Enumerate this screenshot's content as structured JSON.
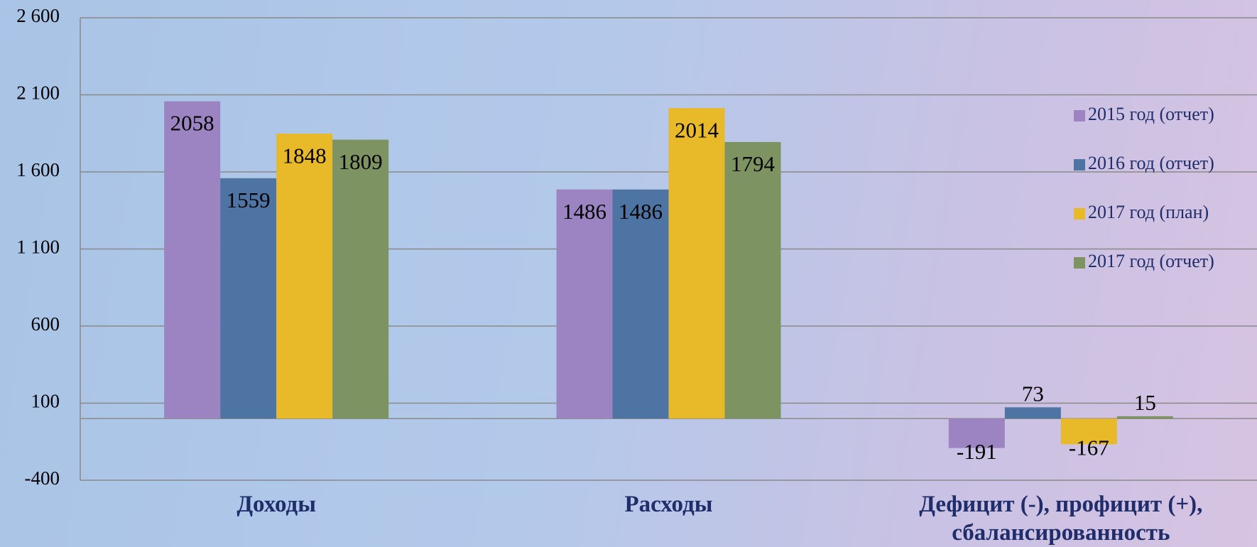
{
  "chart_data": {
    "type": "bar",
    "categories": [
      "Доходы",
      "Расходы",
      "Дефицит (-), профицит (+), сбалансированность"
    ],
    "series": [
      {
        "name": "2015 год (отчет)",
        "color": "#9b84c1",
        "values": [
          2058,
          1486,
          -191
        ]
      },
      {
        "name": "2016 год (отчет)",
        "color": "#4e74a4",
        "values": [
          1559,
          1486,
          73
        ]
      },
      {
        "name": "2017 год (план)",
        "color": "#e8ba2a",
        "values": [
          1848,
          2014,
          -167
        ]
      },
      {
        "name": "2017 год (отчет)",
        "color": "#7d9462",
        "values": [
          1809,
          1794,
          15
        ]
      }
    ],
    "ylim": [
      -400,
      2600
    ],
    "yticks": [
      -400,
      100,
      600,
      {
        "value": 1100,
        "label": "1 100"
      },
      {
        "value": 1600,
        "label": "1 600"
      },
      {
        "value": 2100,
        "label": "2 100"
      },
      {
        "value": 2600,
        "label": "2 600"
      }
    ],
    "grid": true,
    "legend": "right"
  }
}
